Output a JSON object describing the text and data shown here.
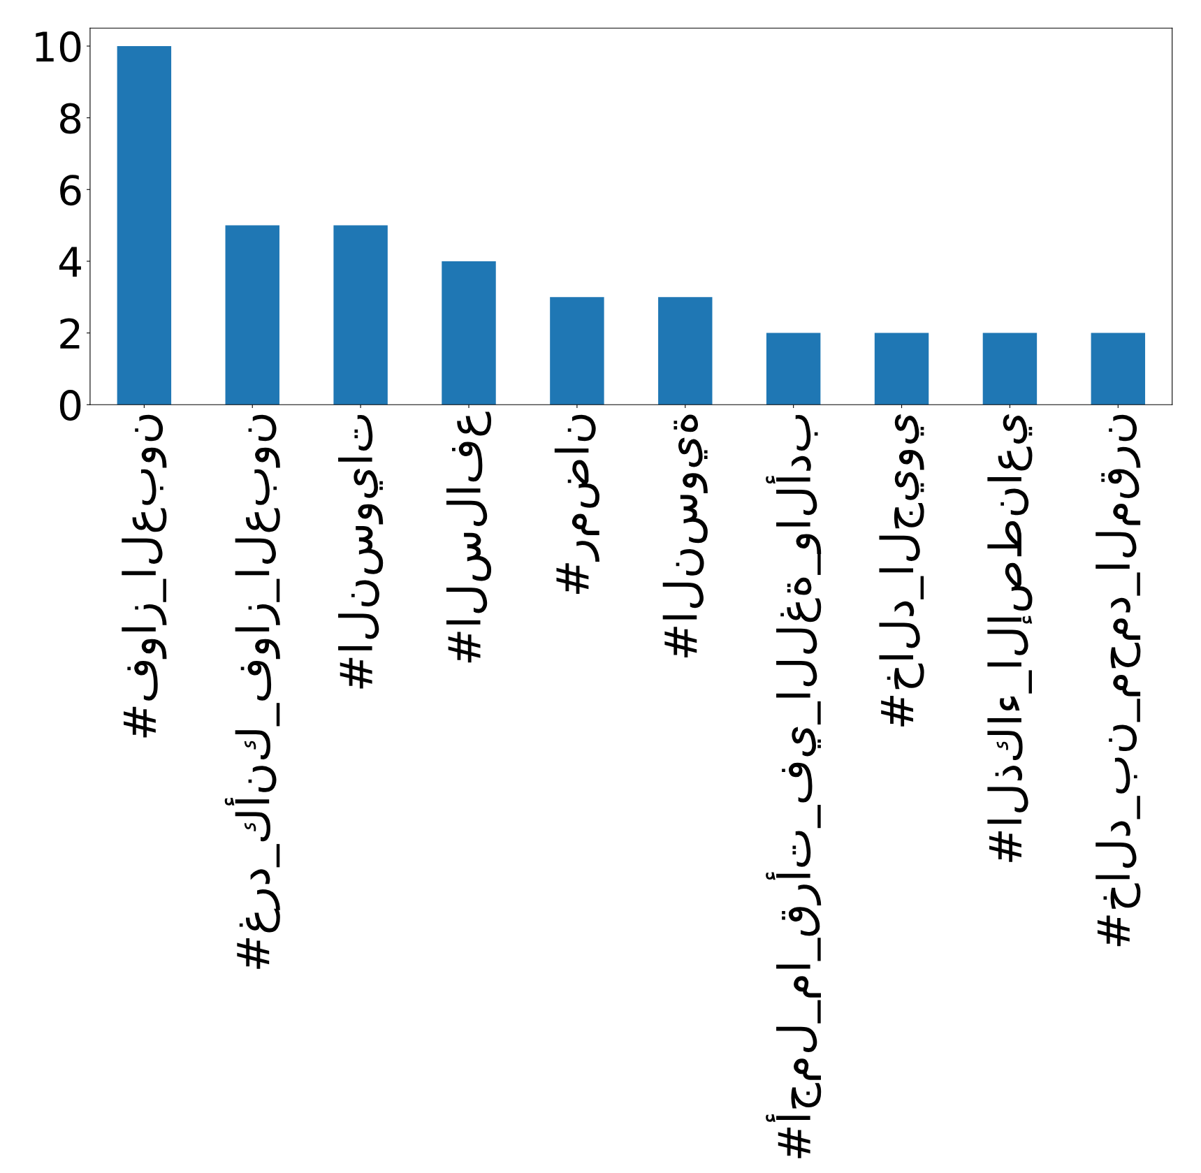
{
  "chart_data": {
    "type": "bar",
    "categories": [
      "#فواز_العبون",
      "#غرد_كأنك_فواز_العبون",
      "#النسويات",
      "#السلافع",
      "#رمضان",
      "#النسوية",
      "#أجمل_ما_قرأت_في_اللغة_والأدب",
      "#خالد_الجيوي",
      "#الذكاء_الإصطناعي",
      "#خالد_بن_محمد_المقرن"
    ],
    "values": [
      10,
      5,
      5,
      4,
      3,
      3,
      2,
      2,
      2,
      2
    ],
    "color": "#1f77b4",
    "ylim": [
      0,
      10.5
    ],
    "yticks": [
      0,
      2,
      4,
      6,
      8,
      10
    ],
    "grid": false,
    "legend": false
  }
}
